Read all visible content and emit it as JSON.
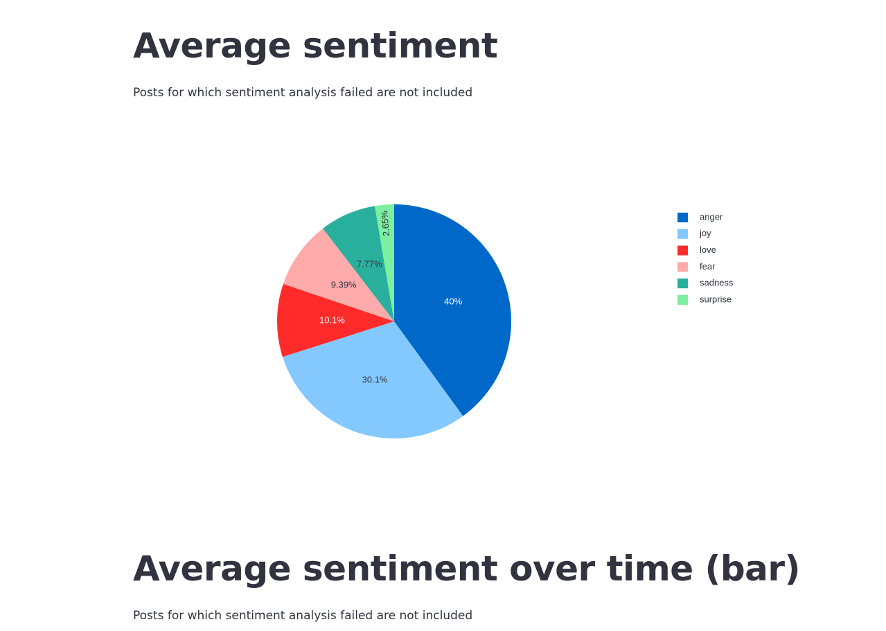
{
  "sections": [
    {
      "title": "Average sentiment",
      "caption": "Posts for which sentiment analysis failed are not included"
    },
    {
      "title": "Average sentiment over time (bar)",
      "caption": "Posts for which sentiment analysis failed are not included"
    }
  ],
  "chart_data": {
    "type": "pie",
    "legend_position": "right",
    "slices": [
      {
        "label": "anger",
        "value": 40.0,
        "text": "40%",
        "color": "#0068c9",
        "text_color": "#ffffff"
      },
      {
        "label": "joy",
        "value": 30.1,
        "text": "30.1%",
        "color": "#83c9ff",
        "text_color": "#31333f"
      },
      {
        "label": "love",
        "value": 10.1,
        "text": "10.1%",
        "color": "#ff2b2b",
        "text_color": "#ffffff"
      },
      {
        "label": "fear",
        "value": 9.39,
        "text": "9.39%",
        "color": "#ffabab",
        "text_color": "#31333f"
      },
      {
        "label": "sadness",
        "value": 7.77,
        "text": "7.77%",
        "color": "#29b09d",
        "text_color": "#31333f"
      },
      {
        "label": "surprise",
        "value": 2.65,
        "text": "2.65%",
        "color": "#7defa1",
        "text_color": "#31333f"
      }
    ]
  }
}
